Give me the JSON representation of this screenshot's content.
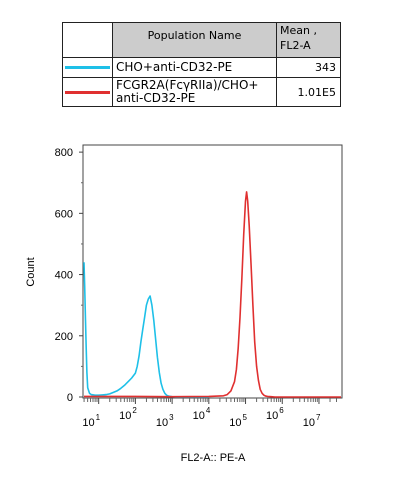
{
  "legend": {
    "header_name": "Population Name",
    "header_mean_line1": "Mean ,",
    "header_mean_line2": "FL2-A",
    "rows": [
      {
        "name_line1": "CHO+anti-CD32-PE",
        "name_line2": "",
        "value": "343",
        "color": "#1ec0e8"
      },
      {
        "name_line1": "FCGR2A(FcγRIIa)/CHO+",
        "name_line2": "anti-CD32-PE",
        "value": "1.01E5",
        "color": "#e03030"
      }
    ]
  },
  "chart_data": {
    "type": "line",
    "xlabel": "FL2-A:: PE-A",
    "ylabel": "Count",
    "xscale": "log",
    "xlim_log10": [
      0.6,
      7.6
    ],
    "ylim": [
      0,
      820
    ],
    "y_ticks": [
      "0",
      "200",
      "400",
      "600",
      "800"
    ],
    "x_ticks": [
      {
        "base": "10",
        "exp": "1"
      },
      {
        "base": "10",
        "exp": "2"
      },
      {
        "base": "10",
        "exp": "3"
      },
      {
        "base": "10",
        "exp": "4"
      },
      {
        "base": "10",
        "exp": "5"
      },
      {
        "base": "10",
        "exp": "6"
      },
      {
        "base": "10",
        "exp": "7"
      }
    ],
    "series": [
      {
        "name": "CHO+anti-CD32-PE",
        "color": "#1ec0e8",
        "x_log10": [
          0.6,
          0.62,
          0.64,
          0.66,
          0.68,
          0.7,
          0.75,
          0.8,
          0.9,
          1.0,
          1.1,
          1.2,
          1.3,
          1.4,
          1.5,
          1.6,
          1.7,
          1.8,
          1.9,
          2.0,
          2.05,
          2.1,
          2.15,
          2.2,
          2.25,
          2.3,
          2.35,
          2.4,
          2.45,
          2.5,
          2.55,
          2.6,
          2.65,
          2.7,
          2.75,
          2.8,
          2.85,
          2.9,
          2.95,
          3.0,
          3.1,
          3.2,
          3.4,
          3.6,
          3.8,
          4.0
        ],
        "y": [
          440,
          360,
          250,
          160,
          80,
          30,
          12,
          8,
          6,
          6,
          7,
          8,
          10,
          15,
          20,
          28,
          38,
          50,
          62,
          78,
          100,
          135,
          180,
          220,
          260,
          300,
          320,
          330,
          300,
          250,
          190,
          130,
          80,
          45,
          25,
          12,
          6,
          3,
          2,
          1,
          0,
          0,
          0,
          0,
          0,
          0
        ]
      },
      {
        "name": "FCGR2A(FcγRIIa)/CHO+anti-CD32-PE",
        "color": "#e03030",
        "x_log10": [
          0.6,
          2.0,
          3.0,
          4.0,
          4.4,
          4.5,
          4.6,
          4.7,
          4.75,
          4.8,
          4.85,
          4.9,
          4.95,
          5.0,
          5.03,
          5.06,
          5.1,
          5.15,
          5.2,
          5.25,
          5.3,
          5.35,
          5.4,
          5.45,
          5.5,
          5.55,
          5.6,
          5.7,
          5.8,
          6.0,
          7.0,
          7.6
        ],
        "y": [
          2,
          2,
          1,
          2,
          4,
          8,
          20,
          50,
          90,
          160,
          260,
          390,
          530,
          640,
          670,
          640,
          560,
          430,
          300,
          180,
          100,
          55,
          25,
          12,
          6,
          3,
          2,
          1,
          0,
          0,
          0,
          0
        ]
      }
    ]
  }
}
